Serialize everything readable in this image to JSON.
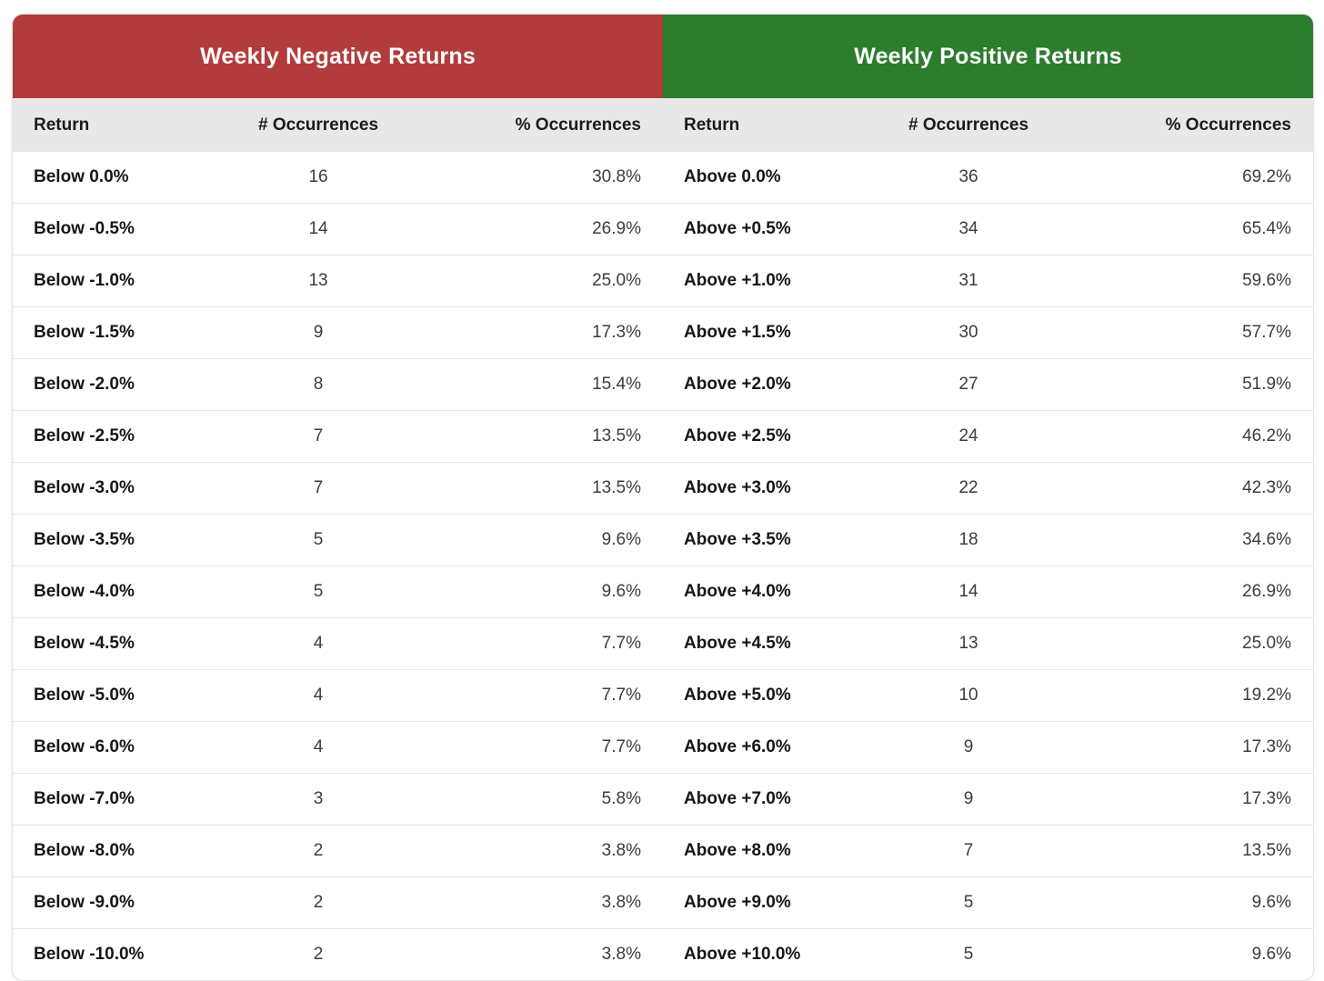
{
  "accent_colors": {
    "negative_header": "#b23c3c",
    "positive_header": "#2e7c2e",
    "column_header_bg": "#e8e8e8"
  },
  "chart_data": [
    {
      "type": "table",
      "title": "Weekly Negative Returns",
      "header_color": "#b23c3c",
      "columns": [
        "Return",
        "# Occurrences",
        "% Occurrences"
      ],
      "rows": [
        [
          "Below 0.0%",
          "16",
          "30.8%"
        ],
        [
          "Below -0.5%",
          "14",
          "26.9%"
        ],
        [
          "Below -1.0%",
          "13",
          "25.0%"
        ],
        [
          "Below -1.5%",
          "9",
          "17.3%"
        ],
        [
          "Below -2.0%",
          "8",
          "15.4%"
        ],
        [
          "Below -2.5%",
          "7",
          "13.5%"
        ],
        [
          "Below -3.0%",
          "7",
          "13.5%"
        ],
        [
          "Below -3.5%",
          "5",
          "9.6%"
        ],
        [
          "Below -4.0%",
          "5",
          "9.6%"
        ],
        [
          "Below -4.5%",
          "4",
          "7.7%"
        ],
        [
          "Below -5.0%",
          "4",
          "7.7%"
        ],
        [
          "Below -6.0%",
          "4",
          "7.7%"
        ],
        [
          "Below -7.0%",
          "3",
          "5.8%"
        ],
        [
          "Below -8.0%",
          "2",
          "3.8%"
        ],
        [
          "Below -9.0%",
          "2",
          "3.8%"
        ],
        [
          "Below -10.0%",
          "2",
          "3.8%"
        ]
      ]
    },
    {
      "type": "table",
      "title": "Weekly Positive Returns",
      "header_color": "#2e7c2e",
      "columns": [
        "Return",
        "# Occurrences",
        "% Occurrences"
      ],
      "rows": [
        [
          "Above 0.0%",
          "36",
          "69.2%"
        ],
        [
          "Above +0.5%",
          "34",
          "65.4%"
        ],
        [
          "Above +1.0%",
          "31",
          "59.6%"
        ],
        [
          "Above +1.5%",
          "30",
          "57.7%"
        ],
        [
          "Above +2.0%",
          "27",
          "51.9%"
        ],
        [
          "Above +2.5%",
          "24",
          "46.2%"
        ],
        [
          "Above +3.0%",
          "22",
          "42.3%"
        ],
        [
          "Above +3.5%",
          "18",
          "34.6%"
        ],
        [
          "Above +4.0%",
          "14",
          "26.9%"
        ],
        [
          "Above +4.5%",
          "13",
          "25.0%"
        ],
        [
          "Above +5.0%",
          "10",
          "19.2%"
        ],
        [
          "Above +6.0%",
          "9",
          "17.3%"
        ],
        [
          "Above +7.0%",
          "9",
          "17.3%"
        ],
        [
          "Above +8.0%",
          "7",
          "13.5%"
        ],
        [
          "Above +9.0%",
          "5",
          "9.6%"
        ],
        [
          "Above +10.0%",
          "5",
          "9.6%"
        ]
      ]
    }
  ]
}
